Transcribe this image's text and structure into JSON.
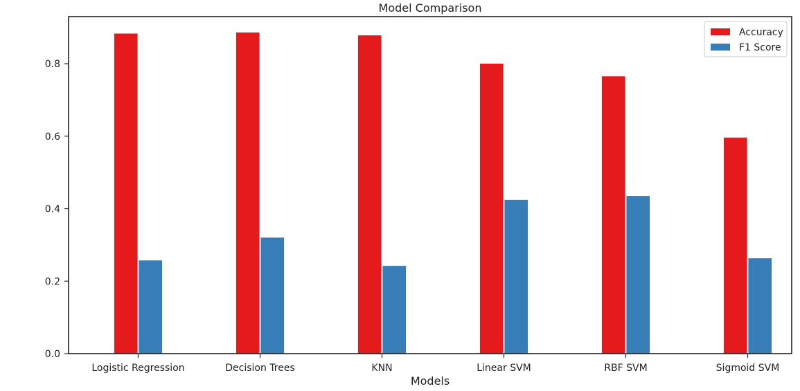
{
  "chart_data": {
    "type": "bar",
    "title": "Model Comparison",
    "xlabel": "Models",
    "ylabel": "",
    "ylim": [
      0,
      0.93
    ],
    "yticks": [
      "0.0",
      "0.2",
      "0.4",
      "0.6",
      "0.8"
    ],
    "categories": [
      "Logistic Regression",
      "Decision Trees",
      "KNN",
      "Linear SVM",
      "RBF SVM",
      "Sigmoid SVM"
    ],
    "series": [
      {
        "name": "Accuracy",
        "color": "#e41a1c",
        "values": [
          0.884,
          0.887,
          0.879,
          0.801,
          0.766,
          0.597
        ]
      },
      {
        "name": "F1 Score",
        "color": "#377eb8",
        "values": [
          0.258,
          0.321,
          0.243,
          0.425,
          0.436,
          0.264
        ]
      }
    ],
    "grid": false,
    "legend_position": "top-right"
  }
}
